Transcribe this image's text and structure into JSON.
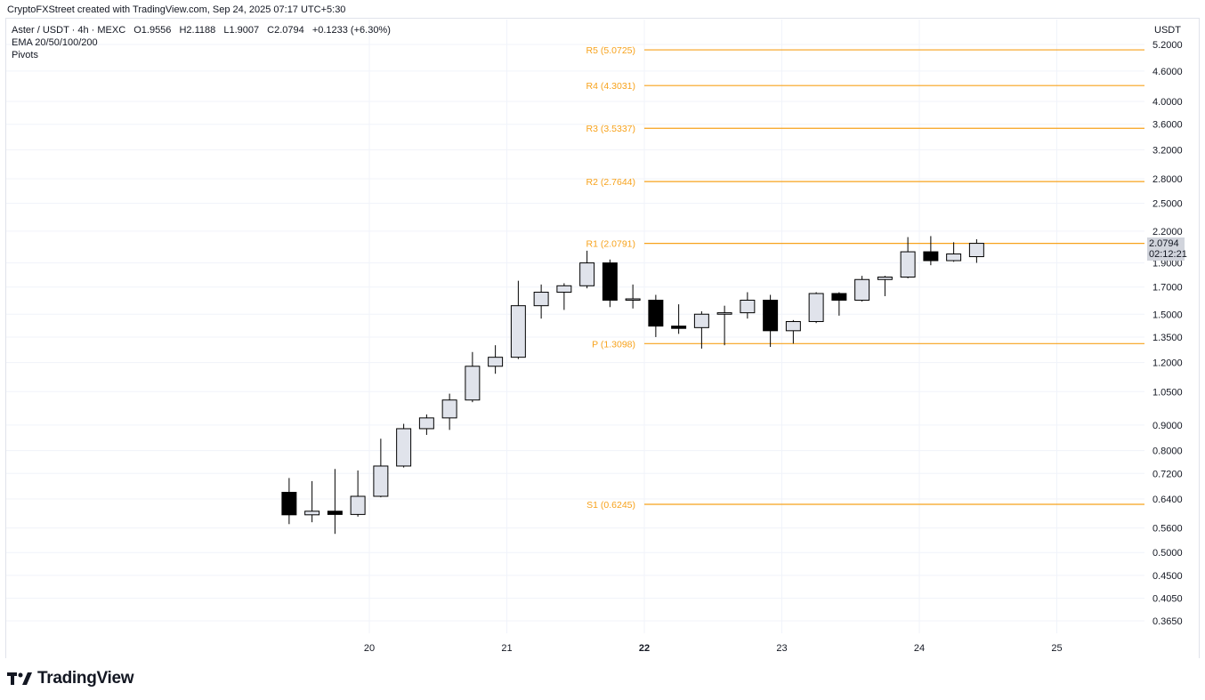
{
  "header": {
    "attribution": "CryptoFXStreet created with TradingView.com, Sep 24, 2025 07:17 UTC+5:30"
  },
  "legend": {
    "symbol": "Aster / USDT · 4h · MEXC",
    "open": "O1.9556",
    "high": "H2.1188",
    "low": "L1.9007",
    "close": "C2.0794",
    "change": "+0.1233 (+6.30%)",
    "indicator_ema": "EMA 20/50/100/200",
    "indicator_pivots": "Pivots"
  },
  "currency_label": "USDT",
  "price_tag": {
    "price": "2.0794",
    "countdown": "02:12:21"
  },
  "footer": {
    "brand": "TradingView"
  },
  "colors": {
    "pivot": "#f7a21b",
    "bull_fill": "#e0e3eb",
    "bear_fill": "#000000",
    "wick": "#000000",
    "axis_text": "#131722",
    "grid": "#f0f3fa"
  },
  "chart_data": {
    "type": "candlestick",
    "y_scale": "log",
    "y_range": [
      0.33,
      5.4
    ],
    "y_ticks": [
      0.365,
      0.405,
      0.45,
      0.5,
      0.56,
      0.64,
      0.72,
      0.8,
      0.9,
      1.05,
      1.2,
      1.35,
      1.5,
      1.7,
      1.9,
      2.2,
      2.5,
      2.8,
      3.2,
      3.6,
      4.0,
      4.6,
      5.2
    ],
    "y_tick_labels": [
      "0.3650",
      "0.4050",
      "0.4500",
      "0.5000",
      "0.5600",
      "0.6400",
      "0.7200",
      "0.8000",
      "0.9000",
      "1.0500",
      "1.2000",
      "1.3500",
      "1.5000",
      "1.7000",
      "1.9000",
      "2.2000",
      "2.5000",
      "2.8000",
      "3.2000",
      "3.6000",
      "4.0000",
      "4.6000",
      "5.2000"
    ],
    "x_day_ticks": [
      {
        "label": "20",
        "day": 20,
        "bold": false
      },
      {
        "label": "21",
        "day": 21,
        "bold": false
      },
      {
        "label": "22",
        "day": 22,
        "bold": true
      },
      {
        "label": "23",
        "day": 23,
        "bold": false
      },
      {
        "label": "24",
        "day": 24,
        "bold": false
      },
      {
        "label": "25",
        "day": 25,
        "bold": false
      }
    ],
    "candles": [
      {
        "t": "2025-09-19 08:00",
        "o": 0.66,
        "h": 0.705,
        "l": 0.57,
        "c": 0.595
      },
      {
        "t": "2025-09-19 12:00",
        "o": 0.595,
        "h": 0.695,
        "l": 0.575,
        "c": 0.605
      },
      {
        "t": "2025-09-19 16:00",
        "o": 0.605,
        "h": 0.735,
        "l": 0.545,
        "c": 0.596
      },
      {
        "t": "2025-09-19 20:00",
        "o": 0.596,
        "h": 0.73,
        "l": 0.59,
        "c": 0.648
      },
      {
        "t": "2025-09-20 00:00",
        "o": 0.648,
        "h": 0.845,
        "l": 0.645,
        "c": 0.745
      },
      {
        "t": "2025-09-20 04:00",
        "o": 0.745,
        "h": 0.905,
        "l": 0.74,
        "c": 0.885
      },
      {
        "t": "2025-09-20 08:00",
        "o": 0.885,
        "h": 0.945,
        "l": 0.86,
        "c": 0.93
      },
      {
        "t": "2025-09-20 12:00",
        "o": 0.93,
        "h": 1.04,
        "l": 0.88,
        "c": 1.01
      },
      {
        "t": "2025-09-20 16:00",
        "o": 1.01,
        "h": 1.26,
        "l": 1.0,
        "c": 1.18
      },
      {
        "t": "2025-09-20 20:00",
        "o": 1.18,
        "h": 1.3,
        "l": 1.14,
        "c": 1.23
      },
      {
        "t": "2025-09-21 00:00",
        "o": 1.23,
        "h": 1.75,
        "l": 1.22,
        "c": 1.56
      },
      {
        "t": "2025-09-21 04:00",
        "o": 1.56,
        "h": 1.72,
        "l": 1.47,
        "c": 1.66
      },
      {
        "t": "2025-09-21 08:00",
        "o": 1.66,
        "h": 1.73,
        "l": 1.53,
        "c": 1.71
      },
      {
        "t": "2025-09-21 12:00",
        "o": 1.71,
        "h": 2.01,
        "l": 1.69,
        "c": 1.9
      },
      {
        "t": "2025-09-21 16:00",
        "o": 1.9,
        "h": 1.93,
        "l": 1.55,
        "c": 1.6
      },
      {
        "t": "2025-09-21 20:00",
        "o": 1.6,
        "h": 1.72,
        "l": 1.54,
        "c": 1.61
      },
      {
        "t": "2025-09-22 00:00",
        "o": 1.6,
        "h": 1.64,
        "l": 1.35,
        "c": 1.42
      },
      {
        "t": "2025-09-22 04:00",
        "o": 1.42,
        "h": 1.57,
        "l": 1.37,
        "c": 1.405
      },
      {
        "t": "2025-09-22 08:00",
        "o": 1.41,
        "h": 1.52,
        "l": 1.28,
        "c": 1.5
      },
      {
        "t": "2025-09-22 12:00",
        "o": 1.5,
        "h": 1.56,
        "l": 1.3,
        "c": 1.51
      },
      {
        "t": "2025-09-22 16:00",
        "o": 1.51,
        "h": 1.66,
        "l": 1.47,
        "c": 1.6
      },
      {
        "t": "2025-09-22 20:00",
        "o": 1.6,
        "h": 1.64,
        "l": 1.29,
        "c": 1.39
      },
      {
        "t": "2025-09-23 00:00",
        "o": 1.39,
        "h": 1.46,
        "l": 1.31,
        "c": 1.45
      },
      {
        "t": "2025-09-23 04:00",
        "o": 1.45,
        "h": 1.66,
        "l": 1.44,
        "c": 1.65
      },
      {
        "t": "2025-09-23 08:00",
        "o": 1.65,
        "h": 1.66,
        "l": 1.49,
        "c": 1.6
      },
      {
        "t": "2025-09-23 12:00",
        "o": 1.6,
        "h": 1.79,
        "l": 1.59,
        "c": 1.76
      },
      {
        "t": "2025-09-23 16:00",
        "o": 1.76,
        "h": 1.79,
        "l": 1.63,
        "c": 1.78
      },
      {
        "t": "2025-09-23 20:00",
        "o": 1.78,
        "h": 2.14,
        "l": 1.77,
        "c": 2.0
      },
      {
        "t": "2025-09-24 00:00",
        "o": 2.0,
        "h": 2.15,
        "l": 1.88,
        "c": 1.92
      },
      {
        "t": "2025-09-24 04:00",
        "o": 1.92,
        "h": 2.09,
        "l": 1.91,
        "c": 1.98
      },
      {
        "t": "2025-09-24 08:00",
        "o": 1.9556,
        "h": 2.1188,
        "l": 1.9007,
        "c": 2.0794
      }
    ],
    "pivot_levels": [
      {
        "label": "R5 (5.0725)",
        "value": 5.0725
      },
      {
        "label": "R4 (4.3031)",
        "value": 4.3031
      },
      {
        "label": "R3 (3.5337)",
        "value": 3.5337
      },
      {
        "label": "R2 (2.7644)",
        "value": 2.7644
      },
      {
        "label": "R1 (2.0791)",
        "value": 2.0791
      },
      {
        "label": "P (1.3098)",
        "value": 1.3098
      },
      {
        "label": "S1 (0.6245)",
        "value": 0.6245
      }
    ],
    "pivot_start": "2025-09-22 00:00",
    "pivot_end": "2025-09-25 16:00"
  }
}
